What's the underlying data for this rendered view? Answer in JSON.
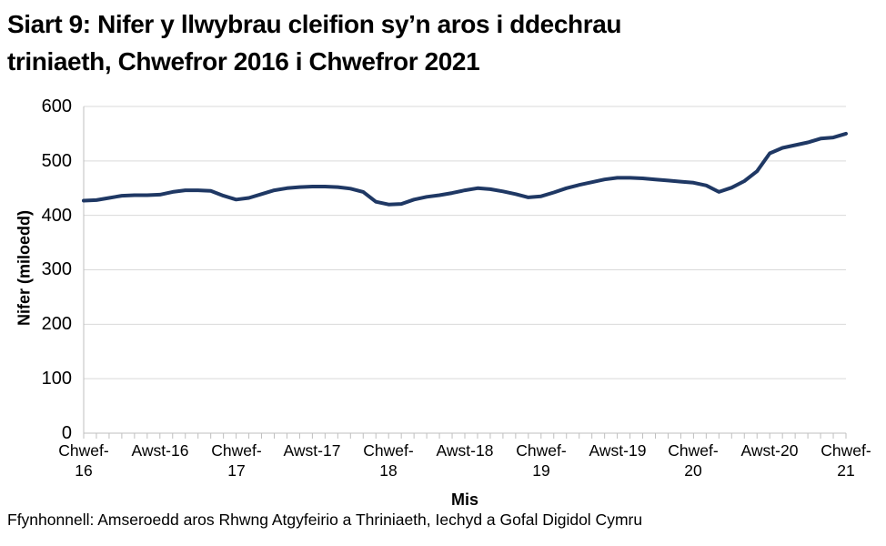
{
  "title": {
    "line1": "Siart 9: Nifer y llwybrau cleifion sy’n aros i ddechrau",
    "line2": "triniaeth, Chwefror 2016 i Chwefror 2021"
  },
  "footer": {
    "source": "Ffynhonnell: Amseroedd aros Rhwng Atgyfeirio a Thriniaeth, Iechyd a Gofal Digidol Cymru"
  },
  "chart_data": {
    "type": "line",
    "title": "Siart 9: Nifer y llwybrau cleifion sy’n aros i ddechrau triniaeth, Chwefror 2016 i Chwefror 2021",
    "xlabel": "Mis",
    "ylabel": "Nifer (miloedd)",
    "x_start": "Chwefror 2016",
    "x_end": "Chwefror 2021",
    "frequency": "misol",
    "ylim": [
      0,
      600
    ],
    "yticks": [
      600,
      500,
      400,
      300,
      200,
      100,
      0
    ],
    "grid": true,
    "legend": false,
    "line_color": "#1f3864",
    "gridline_color": "#d9d9d9",
    "axis_color": "#bfbfbf",
    "xticks": [
      {
        "line1": "Chwef-",
        "line2": "16"
      },
      {
        "line1": "Awst-16",
        "line2": ""
      },
      {
        "line1": "Chwef-",
        "line2": "17"
      },
      {
        "line1": "Awst-17",
        "line2": ""
      },
      {
        "line1": "Chwef-",
        "line2": "18"
      },
      {
        "line1": "Awst-18",
        "line2": ""
      },
      {
        "line1": "Chwef-",
        "line2": "19"
      },
      {
        "line1": "Awst-19",
        "line2": ""
      },
      {
        "line1": "Chwef-",
        "line2": "20"
      },
      {
        "line1": "Awst-20",
        "line2": ""
      },
      {
        "line1": "Chwef-",
        "line2": "21"
      }
    ],
    "values": [
      427,
      428,
      432,
      436,
      437,
      437,
      438,
      443,
      446,
      446,
      445,
      436,
      429,
      432,
      439,
      446,
      450,
      452,
      453,
      453,
      452,
      449,
      443,
      425,
      420,
      421,
      429,
      434,
      437,
      441,
      446,
      450,
      448,
      444,
      439,
      433,
      435,
      442,
      450,
      456,
      461,
      466,
      469,
      469,
      468,
      466,
      464,
      462,
      460,
      455,
      443,
      451,
      463,
      481,
      514,
      524,
      529,
      534,
      541,
      543,
      550
    ]
  }
}
